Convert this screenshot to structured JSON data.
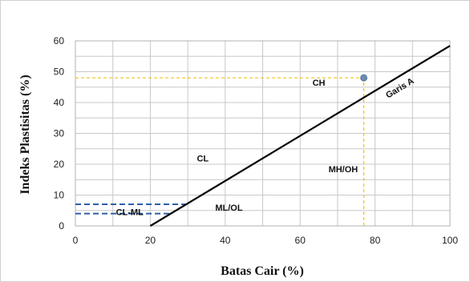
{
  "chart_data": {
    "type": "scatter",
    "xlabel": "Batas Cair (%)",
    "ylabel": "Indeks Plastisitas (%)",
    "xlim": [
      0,
      100
    ],
    "ylim": [
      0,
      60
    ],
    "xticks": [
      0,
      20,
      40,
      60,
      80,
      100
    ],
    "yticks": [
      0,
      10,
      20,
      30,
      40,
      50,
      60
    ],
    "grid": true,
    "x_minor_step": 10,
    "y_minor_step": 5,
    "a_line": {
      "label": "Garis A",
      "points": [
        [
          20,
          0
        ],
        [
          100,
          58.4
        ]
      ],
      "color": "#000000"
    },
    "sample_point": {
      "x": 77,
      "y": 48,
      "color": "#6b8cae"
    },
    "guide_lines": {
      "color": "#f0c419",
      "horizontal": {
        "y": 48,
        "x_from": 0,
        "x_to": 77
      },
      "vertical": {
        "x": 77,
        "y_from": 0,
        "y_to": 48
      }
    },
    "cl_ml_band": {
      "y_lower": 4,
      "y_upper": 7,
      "x_from": 0,
      "color": "#2e5fa8"
    },
    "zones": [
      {
        "id": "ch",
        "label": "CH",
        "x": 65,
        "y": 46.5
      },
      {
        "id": "cl",
        "label": "CL",
        "x": 34,
        "y": 22
      },
      {
        "id": "mh-oh",
        "label": "MH/OH",
        "x": 71.5,
        "y": 18.5
      },
      {
        "id": "ml-ol",
        "label": "ML/OL",
        "x": 41,
        "y": 6
      },
      {
        "id": "cl-ml",
        "label": "CL-ML",
        "x": 14.5,
        "y": 4.5
      }
    ]
  }
}
